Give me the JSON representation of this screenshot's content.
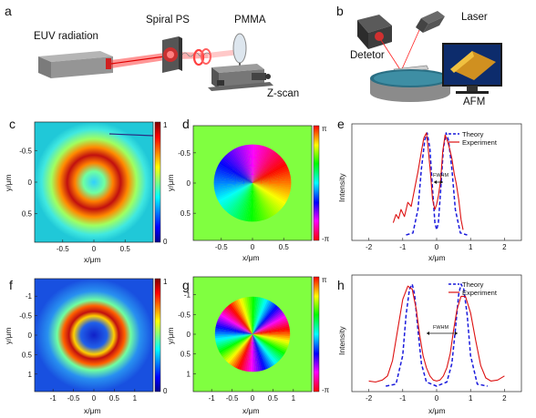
{
  "figure": {
    "panel_labels": [
      "a",
      "b",
      "c",
      "d",
      "e",
      "f",
      "g",
      "h"
    ],
    "panel_a": {
      "euv_label": "EUV radiation",
      "spiral_label": "Spiral PS",
      "pmma_label": "PMMA",
      "zscan_label": "Z-scan"
    },
    "panel_b": {
      "laser_label": "Laser",
      "detector_label": "Detetor",
      "afm_label": "AFM"
    },
    "x_axis_label": "x/μm",
    "y_axis_label": "y/μm",
    "intensity_label": "Intensity",
    "fwhm_label": "FWHM",
    "colorbar_intensity_ticks": [
      "1",
      "0"
    ],
    "colorbar_phase_ticks": [
      "π",
      "-π"
    ],
    "colors": {
      "theory": "#1a1adc",
      "experiment": "#dd1111"
    }
  },
  "chart_data": [
    {
      "panel": "c",
      "type": "heatmap",
      "xlabel": "x/μm",
      "ylabel": "y/μm",
      "x_ticks": [
        "-0.5",
        "0",
        "0.5"
      ],
      "y_ticks": [
        "-0.5",
        "0",
        "0.5"
      ],
      "xlim": [
        -0.95,
        0.95
      ],
      "ylim": [
        -0.95,
        0.95
      ],
      "colorbar_range": [
        0,
        1
      ],
      "description_values": {
        "ring_radius_um": 0.25,
        "center_value": 0.55
      }
    },
    {
      "panel": "d",
      "type": "heatmap",
      "xlabel": "x/μm",
      "ylabel": "y/μm",
      "x_ticks": [
        "-0.5",
        "0",
        "0.5"
      ],
      "y_ticks": [
        "-0.5",
        "0",
        "0.5"
      ],
      "xlim": [
        -0.95,
        0.95
      ],
      "ylim": [
        -0.95,
        0.95
      ],
      "colorbar_range": [
        "-π",
        "π"
      ],
      "topological_charge": 1,
      "disk_radius_um": 0.62
    },
    {
      "panel": "e",
      "type": "line",
      "xlabel": "x/μm",
      "ylabel": "Intensity",
      "xlim": [
        -2.5,
        2.5
      ],
      "ylim": [
        0,
        1
      ],
      "x_ticks": [
        "-2",
        "-1",
        "0",
        "1",
        "2"
      ],
      "annotation": "FWHM",
      "series": [
        {
          "name": "Theory",
          "x": [
            -0.9,
            -0.7,
            -0.55,
            -0.45,
            -0.35,
            -0.28,
            -0.2,
            -0.12,
            -0.05,
            0,
            0.05,
            0.12,
            0.2,
            0.28,
            0.35,
            0.45,
            0.55,
            0.7,
            0.9
          ],
          "y": [
            0,
            0.02,
            0.25,
            0.65,
            0.93,
            1.0,
            0.85,
            0.45,
            0.12,
            0.05,
            0.12,
            0.45,
            0.85,
            1.0,
            0.93,
            0.65,
            0.25,
            0.02,
            0
          ]
        },
        {
          "name": "Experiment",
          "x": [
            -1.28,
            -1.2,
            -1.12,
            -1.05,
            -0.95,
            -0.85,
            -0.75,
            -0.65,
            -0.55,
            -0.45,
            -0.38,
            -0.3,
            -0.25,
            -0.18,
            -0.12,
            -0.05,
            0,
            0.05,
            0.12,
            0.18,
            0.25,
            0.32,
            0.38,
            0.45,
            0.52,
            0.58,
            0.65,
            0.72,
            0.78
          ],
          "y": [
            0.12,
            0.2,
            0.16,
            0.25,
            0.18,
            0.32,
            0.28,
            0.45,
            0.62,
            0.82,
            0.95,
            1.0,
            0.85,
            0.6,
            0.35,
            0.25,
            0.3,
            0.38,
            0.55,
            0.82,
            0.98,
            0.92,
            0.85,
            0.75,
            0.6,
            0.5,
            0.35,
            0.15,
            0.05
          ]
        }
      ]
    },
    {
      "panel": "f",
      "type": "heatmap",
      "xlabel": "x/μm",
      "ylabel": "y/μm",
      "x_ticks": [
        "-1",
        "-0.5",
        "0",
        "0.5",
        "1"
      ],
      "y_ticks": [
        "-1",
        "-0.5",
        "0",
        "0.5",
        "1"
      ],
      "xlim": [
        -1.45,
        1.45
      ],
      "ylim": [
        -1.45,
        1.45
      ],
      "colorbar_range": [
        0,
        1
      ],
      "description_values": {
        "ring_radius_um": 0.65,
        "center_value": 0.05
      }
    },
    {
      "panel": "g",
      "type": "heatmap",
      "xlabel": "x/μm",
      "ylabel": "y/μm",
      "x_ticks": [
        "-1",
        "-0.5",
        "0",
        "0.5",
        "1"
      ],
      "y_ticks": [
        "-1",
        "-0.5",
        "0",
        "0.5",
        "1"
      ],
      "xlim": [
        -1.45,
        1.45
      ],
      "ylim": [
        -1.45,
        1.45
      ],
      "colorbar_range": [
        "-π",
        "π"
      ],
      "topological_charge": 3,
      "disk_radius_um": 0.92
    },
    {
      "panel": "h",
      "type": "line",
      "xlabel": "x/μm",
      "ylabel": "Intensity",
      "xlim": [
        -2.5,
        2.5
      ],
      "ylim": [
        0,
        1
      ],
      "x_ticks": [
        "-2",
        "-1",
        "0",
        "1",
        "2"
      ],
      "annotation": "FWHM",
      "series": [
        {
          "name": "Theory",
          "x": [
            -1.5,
            -1.2,
            -1.0,
            -0.9,
            -0.8,
            -0.72,
            -0.65,
            -0.55,
            -0.45,
            -0.3,
            0,
            0.3,
            0.45,
            0.55,
            0.65,
            0.72,
            0.8,
            0.9,
            1.0,
            1.2,
            1.5
          ],
          "y": [
            0,
            0.02,
            0.3,
            0.7,
            0.95,
            1.0,
            0.9,
            0.55,
            0.22,
            0.04,
            0,
            0.04,
            0.22,
            0.55,
            0.9,
            1.0,
            0.95,
            0.7,
            0.3,
            0.02,
            0
          ]
        },
        {
          "name": "Experiment",
          "x": [
            -2.0,
            -1.8,
            -1.6,
            -1.45,
            -1.3,
            -1.15,
            -1.0,
            -0.85,
            -0.72,
            -0.6,
            -0.5,
            -0.4,
            -0.3,
            -0.2,
            -0.1,
            0,
            0.1,
            0.2,
            0.3,
            0.4,
            0.5,
            0.6,
            0.72,
            0.85,
            1.0,
            1.15,
            1.3,
            1.45,
            1.6,
            1.8,
            2.0
          ],
          "y": [
            0.05,
            0.04,
            0.06,
            0.1,
            0.25,
            0.55,
            0.85,
            0.98,
            0.95,
            0.75,
            0.5,
            0.3,
            0.18,
            0.1,
            0.06,
            0.05,
            0.06,
            0.1,
            0.18,
            0.32,
            0.55,
            0.75,
            0.88,
            0.88,
            0.72,
            0.45,
            0.2,
            0.08,
            0.05,
            0.06,
            0.1
          ]
        }
      ]
    }
  ]
}
